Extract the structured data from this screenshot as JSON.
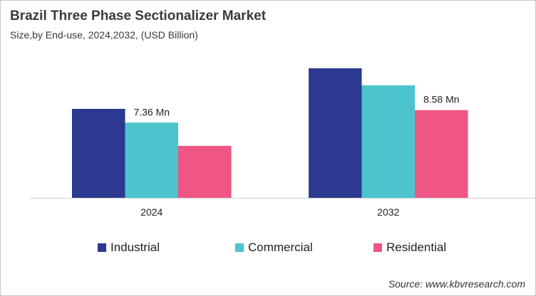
{
  "chart_data": {
    "type": "bar",
    "title": "Brazil Three Phase Sectionalizer Market",
    "subtitle": "Size,by End-use, 2024,2032, (USD Billion)",
    "categories": [
      "2024",
      "2032"
    ],
    "series": [
      {
        "name": "Industrial",
        "color": "#2b3990",
        "values": [
          8.7,
          12.67
        ]
      },
      {
        "name": "Commercial",
        "color": "#4dc3ce",
        "values": [
          7.36,
          11.0
        ]
      },
      {
        "name": "Residential",
        "color": "#ef5683",
        "values": [
          5.08,
          8.58
        ]
      }
    ],
    "data_labels": [
      {
        "series": 1,
        "category": 0,
        "text": "7.36 Mn"
      },
      {
        "series": 2,
        "category": 1,
        "text": "8.58 Mn"
      }
    ],
    "ylim": [
      0,
      13.5
    ],
    "grid": false,
    "legend": "bottom",
    "source": "Source: www.kbvresearch.com"
  }
}
